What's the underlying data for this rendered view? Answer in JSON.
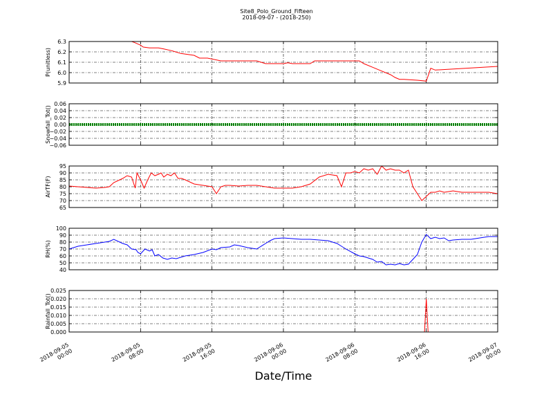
{
  "figure": {
    "title": "Site8_Polo_Ground_Fifteen",
    "subtitle": "2018-09-07 - (2018-250)",
    "xlabel": "Date/Time"
  },
  "chart_data": [
    {
      "type": "line",
      "ylabel": "P(unitless)",
      "ylim": [
        5.9,
        6.35
      ],
      "yticks": [
        "5.9",
        "6.0",
        "6.1",
        "6.2",
        "6.3"
      ],
      "grid": true,
      "series": [
        {
          "color": "#ff0000",
          "x": [
            7.0,
            7.3,
            8.0,
            8.3,
            9.0,
            10.0,
            10.6,
            11.5,
            12.5,
            14.0,
            14.6,
            15.5,
            17.0,
            18.0,
            20.0,
            21.0,
            22.0,
            23.0,
            24.0,
            24.5,
            25.0,
            25.5,
            26.5,
            27.0,
            27.5,
            28.0,
            29.5,
            30.0,
            31.0,
            31.5,
            32.0,
            32.5,
            33.0,
            34.0,
            35.0,
            36.0,
            36.5,
            37.0,
            37.2,
            37.5,
            39.0,
            40.0,
            40.5,
            41.0,
            48.0
          ],
          "y": [
            6.35,
            6.34,
            6.31,
            6.29,
            6.28,
            6.28,
            6.27,
            6.25,
            6.22,
            6.2,
            6.17,
            6.17,
            6.14,
            6.14,
            6.14,
            6.14,
            6.11,
            6.11,
            6.11,
            6.12,
            6.11,
            6.11,
            6.11,
            6.11,
            6.14,
            6.14,
            6.14,
            6.14,
            6.14,
            6.14,
            6.14,
            6.14,
            6.11,
            6.07,
            6.03,
            5.99,
            5.96,
            5.94,
            5.94,
            5.94,
            5.93,
            5.92,
            6.06,
            6.04,
            6.08
          ]
        }
      ]
    },
    {
      "type": "line",
      "ylabel": "Snowfall_Tot()",
      "ylim": [
        -0.06,
        0.06
      ],
      "yticks": [
        "−0.06",
        "−0.04",
        "−0.02",
        "0.00",
        "0.02",
        "0.04",
        "0.06"
      ],
      "grid": true,
      "series": [
        {
          "color": "#008000",
          "x": [
            0,
            48
          ],
          "y": [
            0.0,
            0.0
          ]
        }
      ]
    },
    {
      "type": "line",
      "ylabel": "AirTF(F)",
      "ylim": [
        65,
        95
      ],
      "yticks": [
        "65",
        "70",
        "75",
        "80",
        "85",
        "90",
        "95"
      ],
      "grid": true,
      "series": [
        {
          "color": "#ff0000",
          "x": [
            0,
            1,
            2,
            3,
            4,
            4.5,
            5,
            6,
            6.5,
            7,
            7.4,
            7.6,
            8.0,
            8.4,
            8.8,
            9.2,
            9.6,
            10.0,
            10.3,
            10.6,
            11.0,
            11.4,
            11.8,
            12.2,
            12.6,
            13,
            14,
            15,
            16,
            16.5,
            17,
            17.5,
            18,
            19,
            20,
            21,
            22,
            23,
            24,
            25,
            26,
            27,
            28,
            29,
            30,
            30.5,
            31,
            31.5,
            32,
            32.5,
            33,
            33.5,
            34,
            34.5,
            35,
            35.5,
            36,
            36.5,
            37,
            37.5,
            38,
            38.5,
            39,
            39.5,
            40,
            40.5,
            41,
            41.5,
            42,
            43,
            44,
            45,
            46,
            47,
            48
          ],
          "y": [
            80.5,
            80,
            79.5,
            79,
            79.5,
            80,
            83,
            86,
            88,
            87,
            79,
            90,
            85,
            79,
            85,
            90,
            88,
            89,
            90,
            87,
            89,
            88,
            90,
            86,
            86,
            85,
            82,
            81,
            80,
            75,
            80,
            81,
            81,
            80.5,
            81,
            81,
            80,
            79,
            79,
            79,
            80,
            82,
            87,
            89,
            88,
            80,
            90,
            90,
            91,
            90,
            93,
            92,
            93,
            89,
            95,
            92,
            93,
            92,
            92,
            90,
            92,
            80,
            75,
            70,
            73,
            76,
            76,
            77,
            76,
            77,
            76,
            76,
            76,
            76,
            75
          ]
        }
      ]
    },
    {
      "type": "line",
      "ylabel": "RH(%)",
      "ylim": [
        40,
        100
      ],
      "yticks": [
        "40",
        "50",
        "60",
        "70",
        "80",
        "90",
        "100"
      ],
      "grid": true,
      "series": [
        {
          "color": "#0000ff",
          "x": [
            0,
            0.5,
            1,
            2,
            3,
            4,
            4.5,
            5,
            6,
            6.5,
            7,
            7.5,
            7.7,
            8,
            8.5,
            9,
            9.3,
            9.6,
            10,
            10.5,
            11,
            11.5,
            12,
            13,
            14,
            15,
            16,
            16.5,
            17,
            18,
            18.5,
            19,
            20,
            21,
            22,
            22.5,
            23,
            24,
            25,
            26,
            27,
            28,
            29,
            30,
            30.5,
            31,
            32,
            32.5,
            33,
            33.5,
            34,
            34.5,
            35,
            35.5,
            36,
            36.5,
            37,
            37.5,
            38,
            38.5,
            39,
            39.5,
            40,
            40.5,
            41,
            41.5,
            42,
            42.5,
            43,
            44,
            45,
            46,
            47,
            48
          ],
          "y": [
            70,
            72,
            74,
            76,
            78,
            80,
            81,
            84,
            78,
            76,
            70,
            69,
            65,
            63,
            70,
            67,
            69,
            60,
            62,
            57,
            55,
            57,
            56,
            60,
            62,
            65,
            70,
            69,
            72,
            73,
            76,
            75,
            72,
            70,
            78,
            82,
            85,
            86,
            85,
            84,
            84,
            83,
            82,
            78,
            74,
            70,
            63,
            60,
            59,
            57,
            55,
            51,
            52,
            47,
            48,
            47,
            49,
            47,
            48,
            55,
            62,
            80,
            91,
            85,
            87,
            85,
            86,
            82,
            83,
            84,
            84,
            86,
            88,
            88
          ]
        }
      ]
    },
    {
      "type": "line",
      "ylabel": "Rainfall_Tot()",
      "ylim": [
        0,
        0.025
      ],
      "yticks": [
        "0.000",
        "0.005",
        "0.010",
        "0.015",
        "0.020",
        "0.025"
      ],
      "grid": true,
      "xtick_labels": [
        [
          "2018-09-05",
          "00:00"
        ],
        [
          "2018-09-05",
          "08:00"
        ],
        [
          "2018-09-05",
          "16:00"
        ],
        [
          "2018-09-06",
          "00:00"
        ],
        [
          "2018-09-06",
          "08:00"
        ],
        [
          "2018-09-06",
          "16:00"
        ],
        [
          "2018-09-07",
          "00:00"
        ]
      ],
      "series": [
        {
          "color": "#ff0000",
          "x": [
            0,
            39.8,
            40,
            40.2,
            48
          ],
          "y": [
            0,
            0,
            0.02,
            0,
            0
          ]
        }
      ]
    }
  ]
}
